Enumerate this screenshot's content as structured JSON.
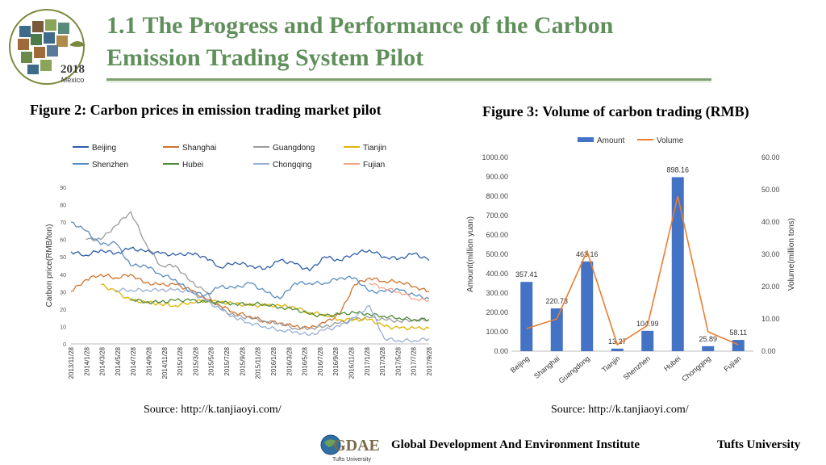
{
  "slide": {
    "title_line1": "1.1 The Progress and Performance of the Carbon",
    "title_line2": "Emission Trading System Pilot",
    "logo_year": "2018",
    "logo_place": "México"
  },
  "fig2": {
    "title": "Figure 2: Carbon prices in emission trading market pilot",
    "source": "Source: http://k.tanjiaoyi.com/"
  },
  "fig3": {
    "title": "Figure 3: Volume of carbon trading (RMB)",
    "source": "Source: http://k.tanjiaoyi.com/"
  },
  "footer": {
    "org": "Global Development And Environment Institute",
    "university": "Tufts University",
    "logo_text": "GDAE",
    "logo_sub": "Tufts University"
  },
  "colors": {
    "title_green": "#5f8f5a",
    "beijing": "#2e5ea8",
    "shanghai": "#d0732e",
    "guangdong": "#9a9a9a",
    "tianjin": "#e0b400",
    "shenzhen": "#5b8cc0",
    "hubei": "#4f8a3a",
    "chongqing": "#98aed6",
    "fujian": "#f2a38a",
    "bar": "#4472c4",
    "volume_line": "#ed7d31"
  },
  "chart_data": [
    {
      "type": "line",
      "title": "Carbon prices in emission trading market pilot",
      "xlabel": "",
      "ylabel": "Carbon price(RMB/ton)",
      "ylim": [
        0,
        90
      ],
      "yticks": [
        "0",
        "10",
        "20",
        "30",
        "40",
        "50",
        "60",
        "70",
        "80",
        "90"
      ],
      "xticks": [
        "2013/11/28",
        "2014/1/28",
        "2014/3/28",
        "2014/5/28",
        "2014/7/28",
        "2014/9/28",
        "2014/11/28",
        "2015/1/28",
        "2015/3/28",
        "2015/5/28",
        "2015/7/28",
        "2015/9/28",
        "2015/11/28",
        "2016/1/28",
        "2016/3/28",
        "2016/5/28",
        "2016/7/28",
        "2016/9/28",
        "2016/11/28",
        "2017/1/28",
        "2017/3/28",
        "2017/5/28",
        "2017/7/28",
        "2017/9/28"
      ],
      "series": [
        {
          "name": "Beijing",
          "values": [
            53,
            51,
            54,
            52,
            55,
            53,
            52,
            51,
            52,
            50,
            44,
            47,
            45,
            43,
            48,
            46,
            42,
            50,
            48,
            52,
            54,
            50,
            49,
            52,
            48
          ]
        },
        {
          "name": "Shanghai",
          "values": [
            30,
            37,
            40,
            38,
            40,
            35,
            34,
            34,
            31,
            26,
            22,
            18,
            16,
            13,
            12,
            10,
            9,
            12,
            17,
            34,
            38,
            36,
            36,
            33,
            30
          ]
        },
        {
          "name": "Guangdong",
          "values": [
            null,
            60,
            60,
            68,
            76,
            58,
            45,
            45,
            36,
            30,
            20,
            16,
            15,
            13,
            12,
            9,
            9,
            10,
            12,
            14,
            15,
            14,
            13,
            14,
            14
          ]
        },
        {
          "name": "Tianjin",
          "values": [
            null,
            null,
            34,
            30,
            25,
            24,
            23,
            22,
            24,
            25,
            24,
            23,
            22,
            22,
            22,
            21,
            18,
            17,
            14,
            14,
            14,
            10,
            9,
            9,
            9
          ]
        },
        {
          "name": "Shenzhen",
          "values": [
            70,
            65,
            57,
            58,
            45,
            45,
            40,
            37,
            30,
            28,
            33,
            32,
            35,
            30,
            26,
            35,
            35,
            35,
            38,
            38,
            30,
            30,
            31,
            28,
            26
          ]
        },
        {
          "name": "Hubei",
          "values": [
            null,
            null,
            null,
            null,
            26,
            24,
            24,
            25,
            25,
            24,
            24,
            23,
            23,
            23,
            21,
            20,
            17,
            16,
            17,
            18,
            17,
            16,
            15,
            14,
            14
          ]
        },
        {
          "name": "Chongqing",
          "values": [
            null,
            null,
            null,
            31,
            31,
            31,
            31,
            31,
            30,
            25,
            20,
            15,
            12,
            10,
            8,
            7,
            5,
            8,
            10,
            15,
            22,
            3,
            2,
            2,
            3
          ]
        },
        {
          "name": "Fujian",
          "values": [
            null,
            null,
            null,
            null,
            null,
            null,
            null,
            null,
            null,
            null,
            null,
            null,
            null,
            null,
            null,
            null,
            null,
            null,
            null,
            null,
            35,
            32,
            30,
            26,
            25
          ]
        }
      ]
    },
    {
      "type": "bar",
      "title": "Volume of carbon trading (RMB)",
      "categories": [
        "Beijing",
        "Shanghai",
        "Guangdong",
        "Tianjin",
        "Shenzhen",
        "Hubei",
        "Chongqing",
        "Fujian"
      ],
      "ylabel": "Amount(million yuan)",
      "y2label": "Volume(million tons)",
      "ylim": [
        0,
        1000
      ],
      "y2lim": [
        0,
        60
      ],
      "yticks": [
        "0.00",
        "100.00",
        "200.00",
        "300.00",
        "400.00",
        "500.00",
        "600.00",
        "700.00",
        "800.00",
        "900.00",
        "1000.00"
      ],
      "y2ticks": [
        "0.00",
        "10.00",
        "20.00",
        "30.00",
        "40.00",
        "50.00",
        "60.00"
      ],
      "legend": [
        "Amount",
        "Volume"
      ],
      "series": [
        {
          "name": "Amount",
          "type": "bar",
          "values": [
            357.41,
            220.73,
            463.16,
            13.27,
            104.99,
            898.16,
            25.89,
            58.11
          ],
          "labels": [
            "357.41",
            "220.73",
            "463.16",
            "13.27",
            "104.99",
            "898.16",
            "25.89",
            "58.11"
          ]
        },
        {
          "name": "Volume",
          "type": "line",
          "axis": "secondary",
          "values": [
            7,
            10,
            31,
            2,
            8,
            48,
            6,
            2
          ]
        }
      ]
    }
  ]
}
